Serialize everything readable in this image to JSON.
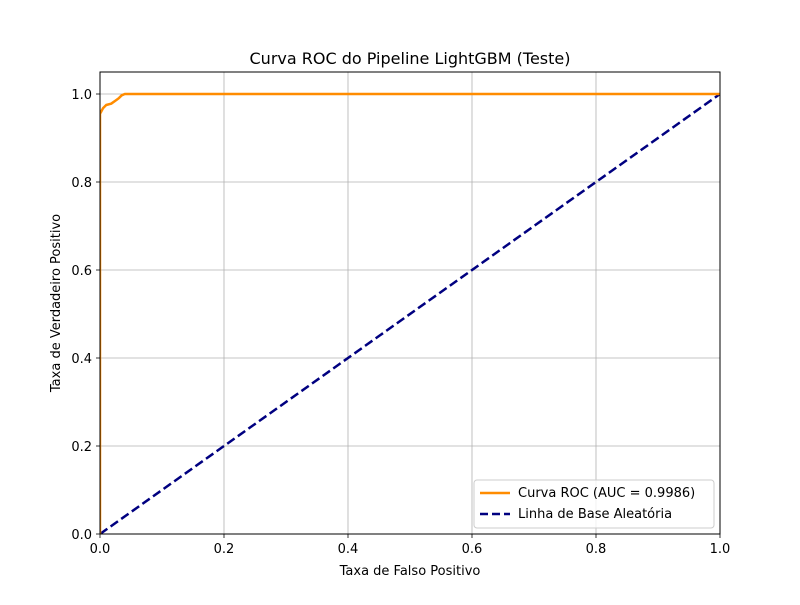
{
  "chart_data": {
    "type": "line",
    "title": "Curva ROC do Pipeline LightGBM (Teste)",
    "xlabel": "Taxa de Falso Positivo",
    "ylabel": "Taxa de Verdadeiro Positivo",
    "xlim": [
      0.0,
      1.0
    ],
    "ylim": [
      0.0,
      1.05
    ],
    "xticks": [
      0.0,
      0.2,
      0.4,
      0.6,
      0.8,
      1.0
    ],
    "yticks": [
      0.0,
      0.2,
      0.4,
      0.6,
      0.8,
      1.0
    ],
    "xtick_labels": [
      "0.0",
      "0.2",
      "0.4",
      "0.6",
      "0.8",
      "1.0"
    ],
    "ytick_labels": [
      "0.0",
      "0.2",
      "0.4",
      "0.6",
      "0.8",
      "1.0"
    ],
    "grid": true,
    "legend_position": "lower-right",
    "series": [
      {
        "name": "Curva ROC (AUC = 0.9986)",
        "color": "#ff8c00",
        "style": "solid",
        "x": [
          0.0,
          0.0,
          0.0,
          0.002,
          0.005,
          0.01,
          0.018,
          0.025,
          0.03,
          0.035,
          0.04,
          0.05,
          1.0
        ],
        "y": [
          0.0,
          0.5,
          0.955,
          0.96,
          0.968,
          0.975,
          0.978,
          0.985,
          0.99,
          0.997,
          1.0,
          1.0,
          1.0
        ]
      },
      {
        "name": "Linha de Base Aleatória",
        "color": "#000080",
        "style": "dashed",
        "x": [
          0.0,
          1.0
        ],
        "y": [
          0.0,
          1.0
        ]
      }
    ]
  }
}
